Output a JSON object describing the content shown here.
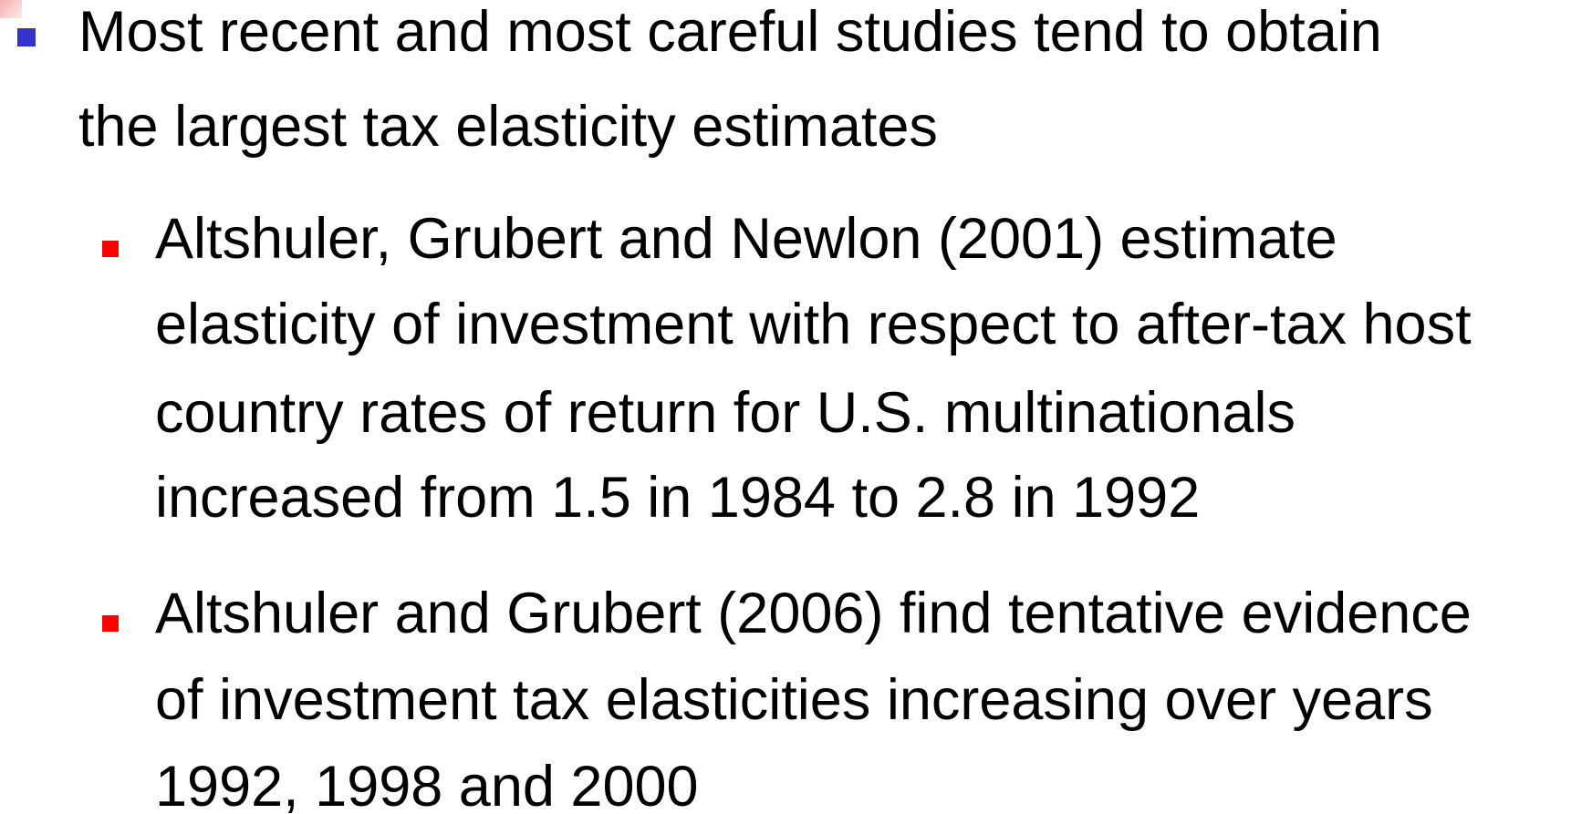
{
  "bullets": [
    {
      "lines": [
        "Most recent and most careful studies tend to obtain",
        "the largest tax elasticity estimates"
      ],
      "sub_bullets": [
        {
          "lines": [
            "Altshuler, Grubert and Newlon (2001) estimate",
            "elasticity of investment with respect to after-tax host",
            "country rates of return for U.S. multinationals",
            "increased from 1.5 in 1984 to 2.8 in 1992"
          ]
        },
        {
          "lines": [
            "Altshuler and Grubert (2006) find tentative evidence",
            "of investment tax elasticities increasing over years",
            "1992, 1998 and 2000"
          ]
        }
      ]
    }
  ]
}
